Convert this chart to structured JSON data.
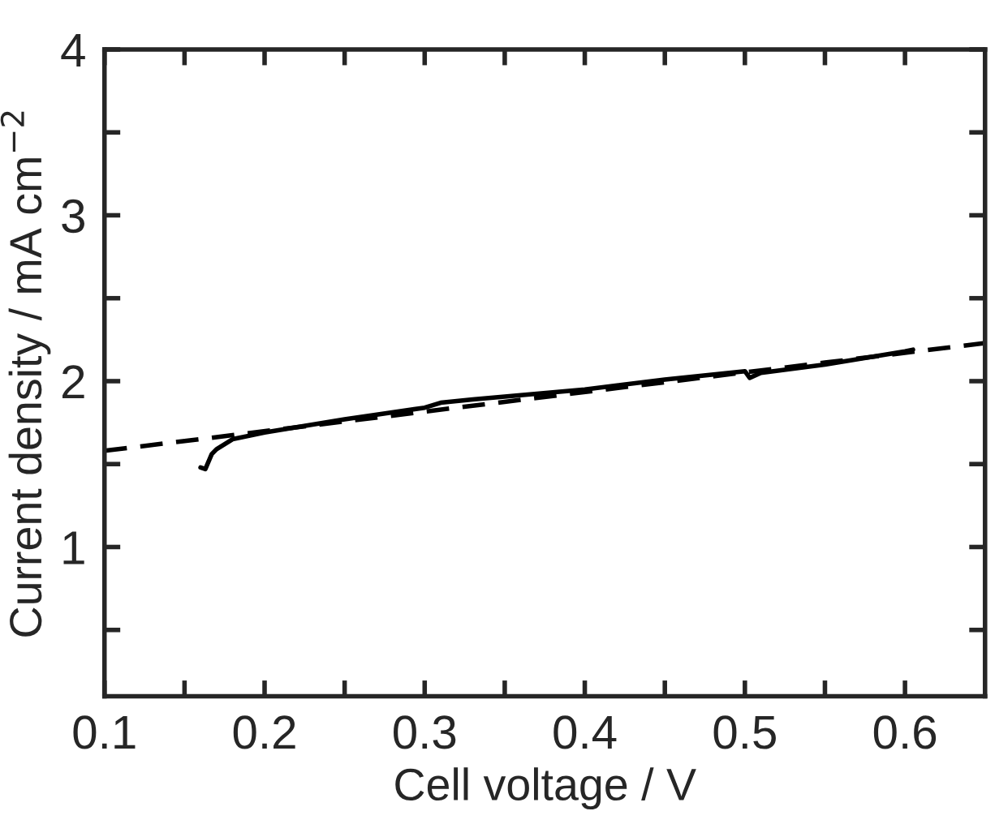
{
  "chart_data": {
    "type": "line",
    "xlabel": "Cell voltage / V",
    "ylabel": "Current density / mA cm$^{−2}$",
    "xlim": [
      0.1,
      0.65
    ],
    "ylim": [
      0.1,
      4
    ],
    "xticks": [
      0.1,
      {
        "value": 0.15,
        "label": null
      },
      0.2,
      {
        "value": 0.25,
        "label": null
      },
      0.3,
      {
        "value": 0.35,
        "label": null
      },
      0.4,
      {
        "value": 0.45,
        "label": null
      },
      0.5,
      {
        "value": 0.55,
        "label": null
      },
      0.6
    ],
    "yticks": [
      {
        "value": 0.5,
        "label": null
      },
      1,
      {
        "value": 1.5,
        "label": null
      },
      2,
      {
        "value": 2.5,
        "label": null
      },
      3,
      {
        "value": 3.5,
        "label": null
      },
      4
    ],
    "grid": false,
    "legend": false,
    "series": [
      {
        "color": "#000000",
        "line_style": "solid",
        "x": [
          0.16,
          0.163,
          0.167,
          0.17,
          0.18,
          0.2,
          0.25,
          0.3,
          0.31,
          0.33,
          0.4,
          0.45,
          0.5,
          0.503,
          0.51,
          0.55,
          0.6,
          0.605
        ],
        "values": [
          1.48,
          1.47,
          1.56,
          1.59,
          1.65,
          1.69,
          1.77,
          1.84,
          1.87,
          1.89,
          1.95,
          2.01,
          2.06,
          2.02,
          2.05,
          2.1,
          2.18,
          2.19
        ]
      },
      {
        "color": "#000000",
        "line_style": "dashed",
        "x": [
          0.1,
          0.65
        ],
        "values": [
          1.58,
          2.23
        ]
      }
    ]
  }
}
